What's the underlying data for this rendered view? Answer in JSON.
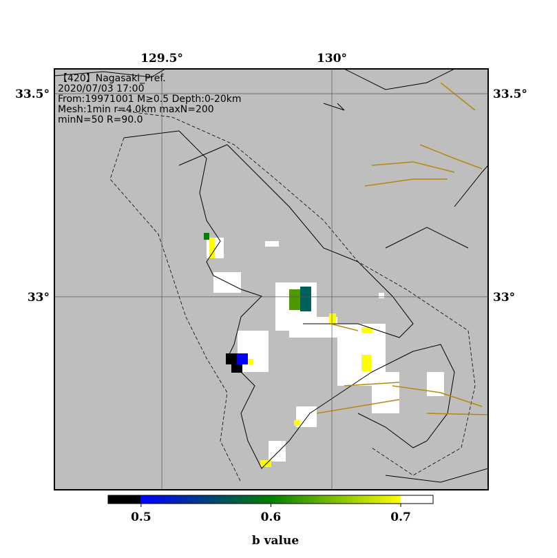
{
  "map": {
    "header": [
      "【420】Nagasaki_Pref.",
      "2020/07/03 17:00",
      "From:19971001 M≥0.5 Depth:0-20km",
      "Mesh:1min r=4.0km maxN=200",
      "minN=50 R=90.0"
    ],
    "xlim": [
      129.184,
      130.4595
    ],
    "ylim": [
      32.525,
      33.561
    ],
    "xticks": [
      {
        "value": 129.5,
        "label": "129.5°"
      },
      {
        "value": 130,
        "label": "130°"
      }
    ],
    "yticks": [
      {
        "value": 33.5,
        "label": "33.5°"
      },
      {
        "value": 33,
        "label": "33°"
      }
    ],
    "colorbar": {
      "label": "b value",
      "lim": [
        0.4746,
        0.7249
      ],
      "ticks": [
        0.5,
        0.6,
        0.7
      ]
    }
  }
}
